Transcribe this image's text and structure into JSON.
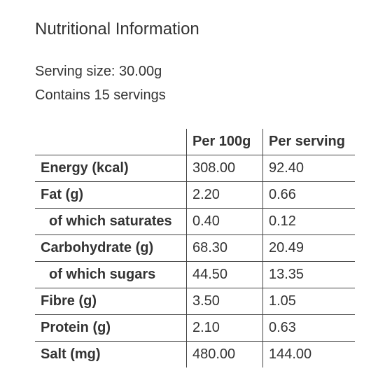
{
  "header": {
    "title": "Nutritional Information",
    "serving_size": "Serving size: 30.00g",
    "servings": "Contains 15 servings"
  },
  "table": {
    "columns": [
      "Per 100g",
      "Per serving"
    ],
    "rows": [
      [
        "Energy (kcal)",
        "308.00",
        "92.40"
      ],
      [
        "Fat (g)",
        "2.20",
        "0.66"
      ],
      [
        "of which saturates",
        "0.40",
        "0.12"
      ],
      [
        "Carbohydrate (g)",
        "68.30",
        "20.49"
      ],
      [
        "of which sugars",
        "44.50",
        "13.35"
      ],
      [
        "Fibre (g)",
        "3.50",
        "1.05"
      ],
      [
        "Protein (g)",
        "2.10",
        "0.63"
      ],
      [
        "Salt (mg)",
        "480.00",
        "144.00"
      ]
    ]
  }
}
